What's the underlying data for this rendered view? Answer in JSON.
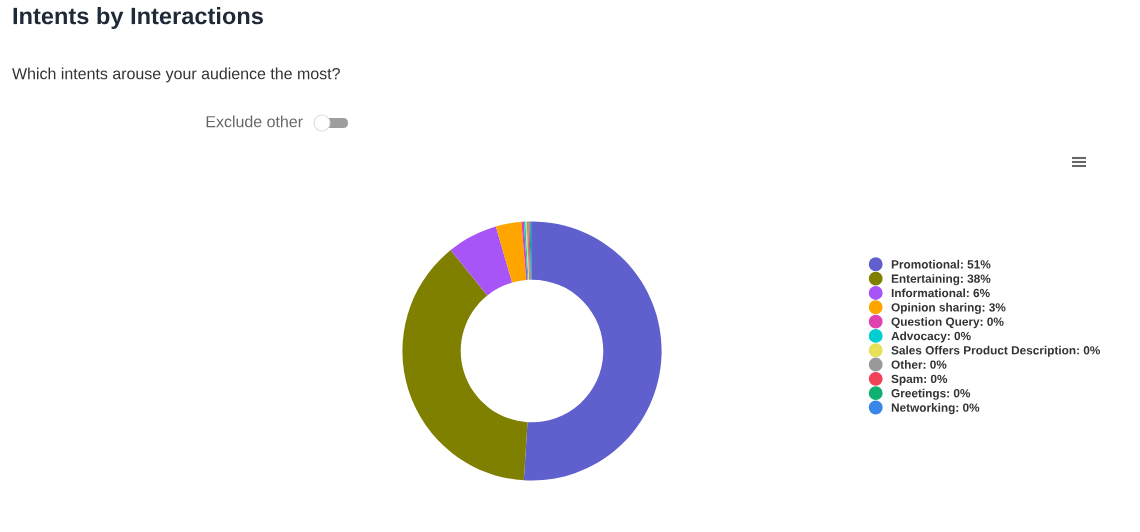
{
  "chart_data": {
    "type": "donut",
    "title": "Intents by Interactions",
    "subtitle": "Which intents arouse your audience the most?",
    "annotations": [
      "Exclude other"
    ],
    "categories": [
      "Promotional",
      "Entertaining",
      "Informational",
      "Opinion sharing",
      "Question Query",
      "Advocacy",
      "Sales Offers Product Description",
      "Other",
      "Spam",
      "Greetings",
      "Networking"
    ],
    "values": [
      51.0,
      38.2,
      6.3,
      3.2,
      0.3,
      0.2,
      0.15,
      0.2,
      0.15,
      0.15,
      0.15
    ],
    "value_labels": [
      "51%",
      "38%",
      "6%",
      "3%",
      "0%",
      "0%",
      "0%",
      "0%",
      "0%",
      "0%",
      "0%"
    ],
    "colors": [
      "#5f5fcd",
      "#808000",
      "#a855f7",
      "#ffa500",
      "#e040b0",
      "#00ced1",
      "#e6e05a",
      "#999999",
      "#f0435a",
      "#10b070",
      "#3a86e8"
    ],
    "legend": "right"
  }
}
